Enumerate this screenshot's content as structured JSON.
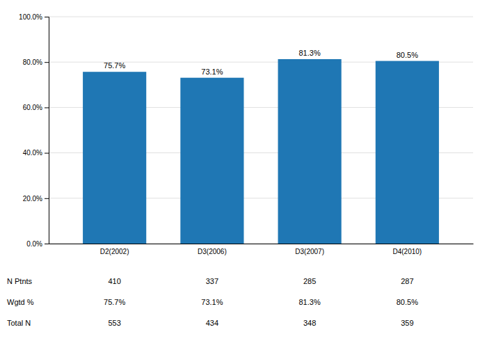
{
  "chart_data": {
    "type": "bar",
    "categories": [
      "D2(2002)",
      "D3(2006)",
      "D3(2007)",
      "D4(2010)"
    ],
    "values": [
      75.7,
      73.1,
      81.3,
      80.5
    ],
    "data_labels": true,
    "value_labels": [
      "75.7%",
      "73.1%",
      "81.3%",
      "80.5%"
    ],
    "ylim": [
      0,
      100
    ],
    "yticks": [
      {
        "value": 0,
        "label": "0.0%"
      },
      {
        "value": 20,
        "label": "20.0%"
      },
      {
        "value": 40,
        "label": "40.0%"
      },
      {
        "value": 60,
        "label": "60.0%"
      },
      {
        "value": 80,
        "label": "80.0%"
      },
      {
        "value": 100,
        "label": "100.0%"
      }
    ],
    "grid": true,
    "table": {
      "rows": [
        {
          "label": "N Ptnts",
          "values": [
            "410",
            "337",
            "285",
            "287"
          ]
        },
        {
          "label": "Wgtd %",
          "values": [
            "75.7%",
            "73.1%",
            "81.3%",
            "80.5%"
          ]
        },
        {
          "label": "Total N",
          "values": [
            "553",
            "434",
            "348",
            "359"
          ]
        }
      ]
    }
  }
}
